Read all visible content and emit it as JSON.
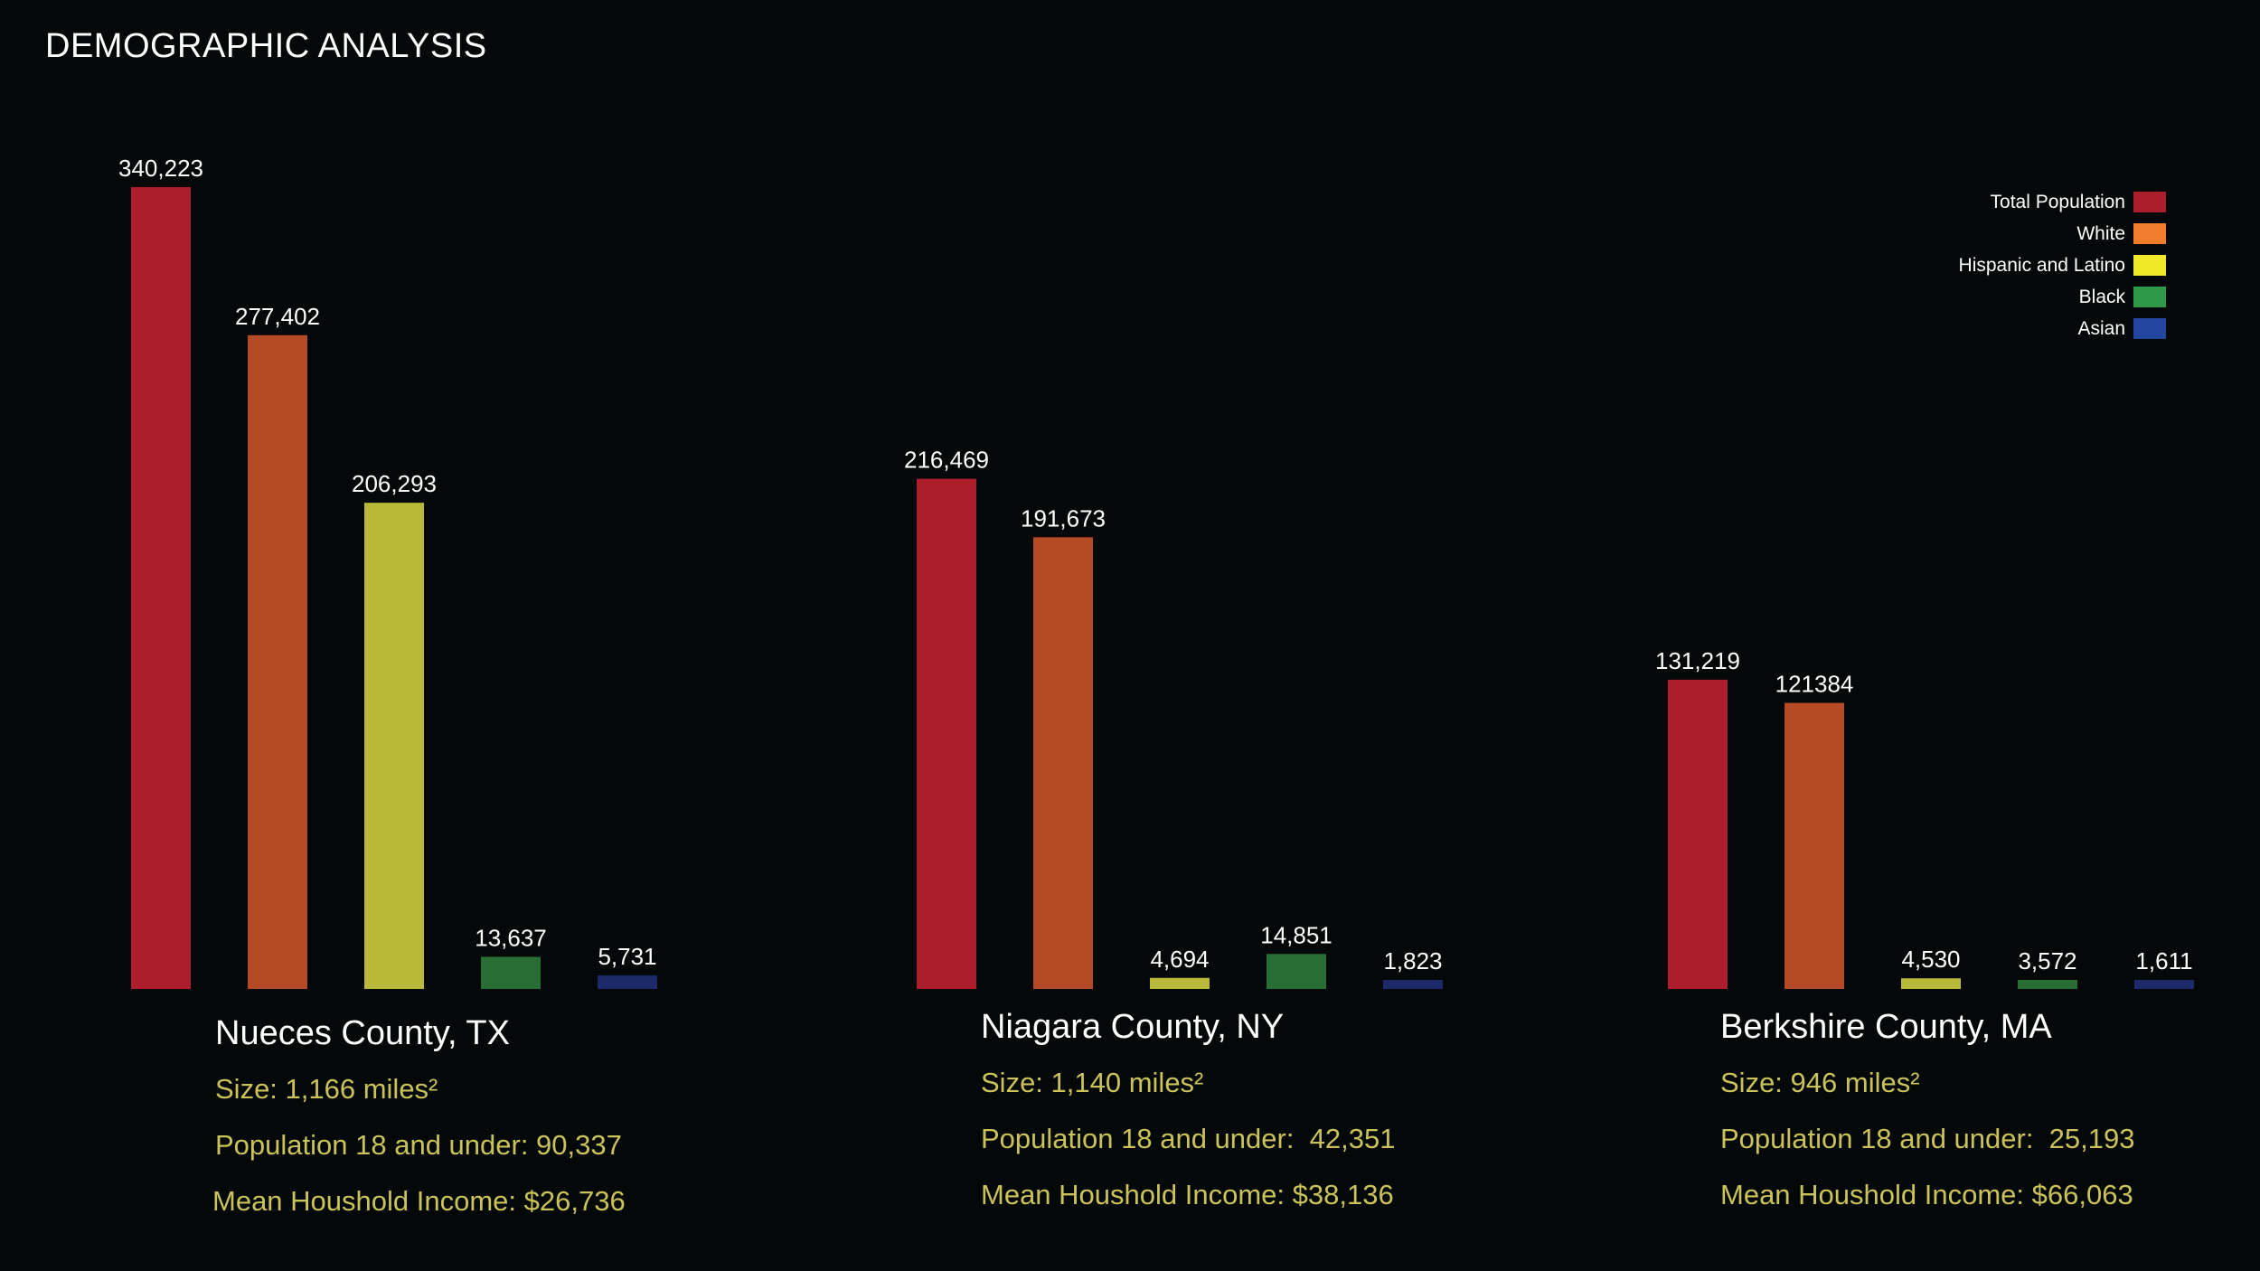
{
  "title": "DEMOGRAPHIC ANALYSIS",
  "legend": [
    {
      "label": "Total Population",
      "color": "#ad1e2c"
    },
    {
      "label": "White",
      "color": "#f07c2c"
    },
    {
      "label": "Hispanic and Latino",
      "color": "#f2e82a"
    },
    {
      "label": "Black",
      "color": "#2e9a49"
    },
    {
      "label": "Asian",
      "color": "#23469e"
    }
  ],
  "bar_colors": [
    "#ad1e2c",
    "#b54b26",
    "#bab838",
    "#276d34",
    "#1d2a6a"
  ],
  "chart_data": {
    "type": "bar",
    "categories": [
      "Total Population",
      "White",
      "Hispanic and Latino",
      "Black",
      "Asian"
    ],
    "groups": [
      {
        "name": "Nueces County, TX",
        "values": [
          340223,
          277402,
          206293,
          13637,
          5731
        ],
        "labels": [
          "340,223",
          "277,402",
          "206,293",
          "13,637",
          "5,731"
        ]
      },
      {
        "name": "Niagara County, NY",
        "values": [
          216469,
          191673,
          4694,
          14851,
          1823
        ],
        "labels": [
          "216,469",
          "191,673",
          "4,694",
          "14,851",
          "1,823"
        ]
      },
      {
        "name": "Berkshire County, MA",
        "values": [
          131219,
          121384,
          4530,
          3572,
          1611
        ],
        "labels": [
          "131,219",
          "121384",
          "4,530",
          "3,572",
          "1,611"
        ]
      }
    ]
  },
  "counties": [
    {
      "name": "Nueces County, TX",
      "size": "Size: 1,166 miles²",
      "population_18": "Population 18 and under: 90,337",
      "income": "Mean Houshold Income: $26,736"
    },
    {
      "name": "Niagara County, NY",
      "size": "Size: 1,140 miles²",
      "population_18": "Population 18 and under:  42,351",
      "income": "Mean Houshold Income: $38,136"
    },
    {
      "name": "Berkshire County, MA",
      "size": "Size: 946 miles²",
      "population_18": "Population 18 and under:  25,193",
      "income": "Mean Houshold Income: $66,063"
    }
  ]
}
